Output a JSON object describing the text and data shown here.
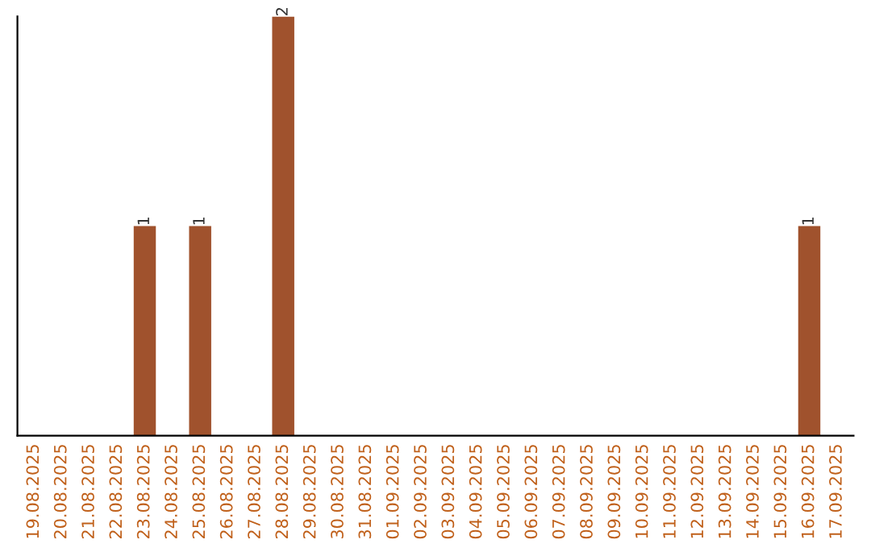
{
  "chart_data": {
    "type": "bar",
    "categories": [
      "19.08.2025",
      "20.08.2025",
      "21.08.2025",
      "22.08.2025",
      "23.08.2025",
      "24.08.2025",
      "25.08.2025",
      "26.08.2025",
      "27.08.2025",
      "28.08.2025",
      "29.08.2025",
      "30.08.2025",
      "31.08.2025",
      "01.09.2025",
      "02.09.2025",
      "03.09.2025",
      "04.09.2025",
      "05.09.2025",
      "06.09.2025",
      "07.09.2025",
      "08.09.2025",
      "09.09.2025",
      "10.09.2025",
      "11.09.2025",
      "12.09.2025",
      "13.09.2025",
      "14.09.2025",
      "15.09.2025",
      "16.09.2025",
      "17.09.2025"
    ],
    "series": [
      {
        "color": "#a0522d",
        "values": [
          0,
          0,
          0,
          0,
          1,
          0,
          1,
          0,
          0,
          2,
          0,
          0,
          0,
          0,
          0,
          0,
          0,
          0,
          0,
          0,
          0,
          0,
          0,
          0,
          0,
          0,
          0,
          0,
          1,
          0
        ],
        "value_labels": [
          null,
          null,
          null,
          null,
          "1",
          null,
          "1",
          null,
          null,
          "2",
          null,
          null,
          null,
          null,
          null,
          null,
          null,
          null,
          null,
          null,
          null,
          null,
          null,
          null,
          null,
          null,
          null,
          null,
          "1",
          null
        ]
      }
    ],
    "tick_labels": "x",
    "grid": false,
    "legend": false
  }
}
